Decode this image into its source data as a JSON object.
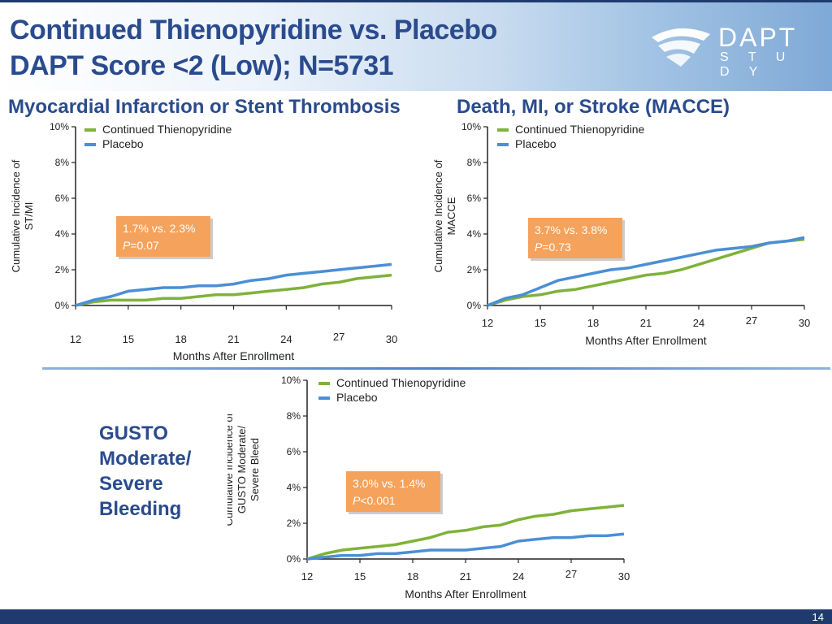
{
  "header": {
    "title_line1": "Continued Thienopyridine vs. Placebo",
    "title_line2": "DAPT Score <2 (Low); N=5731",
    "logo_word": "DAPT",
    "logo_sub": "S T U D Y"
  },
  "colors": {
    "green": "#7fb239",
    "blue": "#4a8fd6",
    "box": "#f5a25c",
    "title": "#2a4b8d"
  },
  "sections": {
    "mi_st_title": "Myocardial Infarction or Stent Thrombosis",
    "macce_title": "Death, MI, or Stroke (MACCE)",
    "bleed_label_lines": [
      "GUSTO",
      "Moderate/",
      "Severe",
      "Bleeding"
    ]
  },
  "chart_data": [
    {
      "type": "line",
      "ylabel": "Cumulative Incidence of ST/MI",
      "xlabel": "Months After Enrollment",
      "xlim": [
        12,
        30
      ],
      "ylim": [
        0,
        10
      ],
      "xticks": [
        "12",
        "15",
        "18",
        "21",
        "24",
        "27",
        "30"
      ],
      "yticks": [
        "0%",
        "2%",
        "4%",
        "6%",
        "8%",
        "10%"
      ],
      "legend": [
        "Continued Thienopyridine",
        "Placebo"
      ],
      "annotation": {
        "line1": "1.7% vs. 2.3%",
        "p_label": "P",
        "p_value": "=0.07"
      },
      "series": [
        {
          "name": "Continued Thienopyridine",
          "x": [
            12,
            13,
            14,
            15,
            16,
            17,
            18,
            19,
            20,
            21,
            22,
            23,
            24,
            25,
            26,
            27,
            28,
            29,
            30
          ],
          "y": [
            0,
            0.2,
            0.3,
            0.3,
            0.3,
            0.4,
            0.4,
            0.5,
            0.6,
            0.6,
            0.7,
            0.8,
            0.9,
            1.0,
            1.2,
            1.3,
            1.5,
            1.6,
            1.7
          ]
        },
        {
          "name": "Placebo",
          "x": [
            12,
            13,
            14,
            15,
            16,
            17,
            18,
            19,
            20,
            21,
            22,
            23,
            24,
            25,
            26,
            27,
            28,
            29,
            30
          ],
          "y": [
            0,
            0.3,
            0.5,
            0.8,
            0.9,
            1.0,
            1.0,
            1.1,
            1.1,
            1.2,
            1.4,
            1.5,
            1.7,
            1.8,
            1.9,
            2.0,
            2.1,
            2.2,
            2.3
          ]
        }
      ]
    },
    {
      "type": "line",
      "ylabel": "Cumulative Incidence of MACCE",
      "xlabel": "Months After Enrollment",
      "xlim": [
        12,
        30
      ],
      "ylim": [
        0,
        10
      ],
      "xticks": [
        "12",
        "15",
        "18",
        "21",
        "24",
        "27",
        "30"
      ],
      "yticks": [
        "0%",
        "2%",
        "4%",
        "6%",
        "8%",
        "10%"
      ],
      "legend": [
        "Continued Thienopyridine",
        "Placebo"
      ],
      "annotation": {
        "line1": "3.7% vs. 3.8%",
        "p_label": "P",
        "p_value": "=0.73"
      },
      "series": [
        {
          "name": "Continued Thienopyridine",
          "x": [
            12,
            13,
            14,
            15,
            16,
            17,
            18,
            19,
            20,
            21,
            22,
            23,
            24,
            25,
            26,
            27,
            28,
            29,
            30
          ],
          "y": [
            0,
            0.3,
            0.5,
            0.6,
            0.8,
            0.9,
            1.1,
            1.3,
            1.5,
            1.7,
            1.8,
            2.0,
            2.3,
            2.6,
            2.9,
            3.2,
            3.5,
            3.6,
            3.7
          ]
        },
        {
          "name": "Placebo",
          "x": [
            12,
            13,
            14,
            15,
            16,
            17,
            18,
            19,
            20,
            21,
            22,
            23,
            24,
            25,
            26,
            27,
            28,
            29,
            30
          ],
          "y": [
            0,
            0.4,
            0.6,
            1.0,
            1.4,
            1.6,
            1.8,
            2.0,
            2.1,
            2.3,
            2.5,
            2.7,
            2.9,
            3.1,
            3.2,
            3.3,
            3.5,
            3.6,
            3.8
          ]
        }
      ]
    },
    {
      "type": "line",
      "ylabel": "Cumulative Incidence of GUSTO Moderate/ Severe Bleed",
      "xlabel": "Months After Enrollment",
      "xlim": [
        12,
        30
      ],
      "ylim": [
        0,
        10
      ],
      "xticks": [
        "12",
        "15",
        "18",
        "21",
        "24",
        "27",
        "30"
      ],
      "yticks": [
        "0%",
        "2%",
        "4%",
        "6%",
        "8%",
        "10%"
      ],
      "legend": [
        "Continued Thienopyridine",
        "Placebo"
      ],
      "annotation": {
        "line1": "3.0% vs. 1.4%",
        "p_label": "P",
        "p_value": "<0.001"
      },
      "series": [
        {
          "name": "Continued Thienopyridine",
          "x": [
            12,
            13,
            14,
            15,
            16,
            17,
            18,
            19,
            20,
            21,
            22,
            23,
            24,
            25,
            26,
            27,
            28,
            29,
            30
          ],
          "y": [
            0,
            0.3,
            0.5,
            0.6,
            0.7,
            0.8,
            1.0,
            1.2,
            1.5,
            1.6,
            1.8,
            1.9,
            2.2,
            2.4,
            2.5,
            2.7,
            2.8,
            2.9,
            3.0
          ]
        },
        {
          "name": "Placebo",
          "x": [
            12,
            13,
            14,
            15,
            16,
            17,
            18,
            19,
            20,
            21,
            22,
            23,
            24,
            25,
            26,
            27,
            28,
            29,
            30
          ],
          "y": [
            0,
            0.1,
            0.2,
            0.2,
            0.3,
            0.3,
            0.4,
            0.5,
            0.5,
            0.5,
            0.6,
            0.7,
            1.0,
            1.1,
            1.2,
            1.2,
            1.3,
            1.3,
            1.4
          ]
        }
      ]
    }
  ],
  "footer": {
    "page_number": "14"
  }
}
